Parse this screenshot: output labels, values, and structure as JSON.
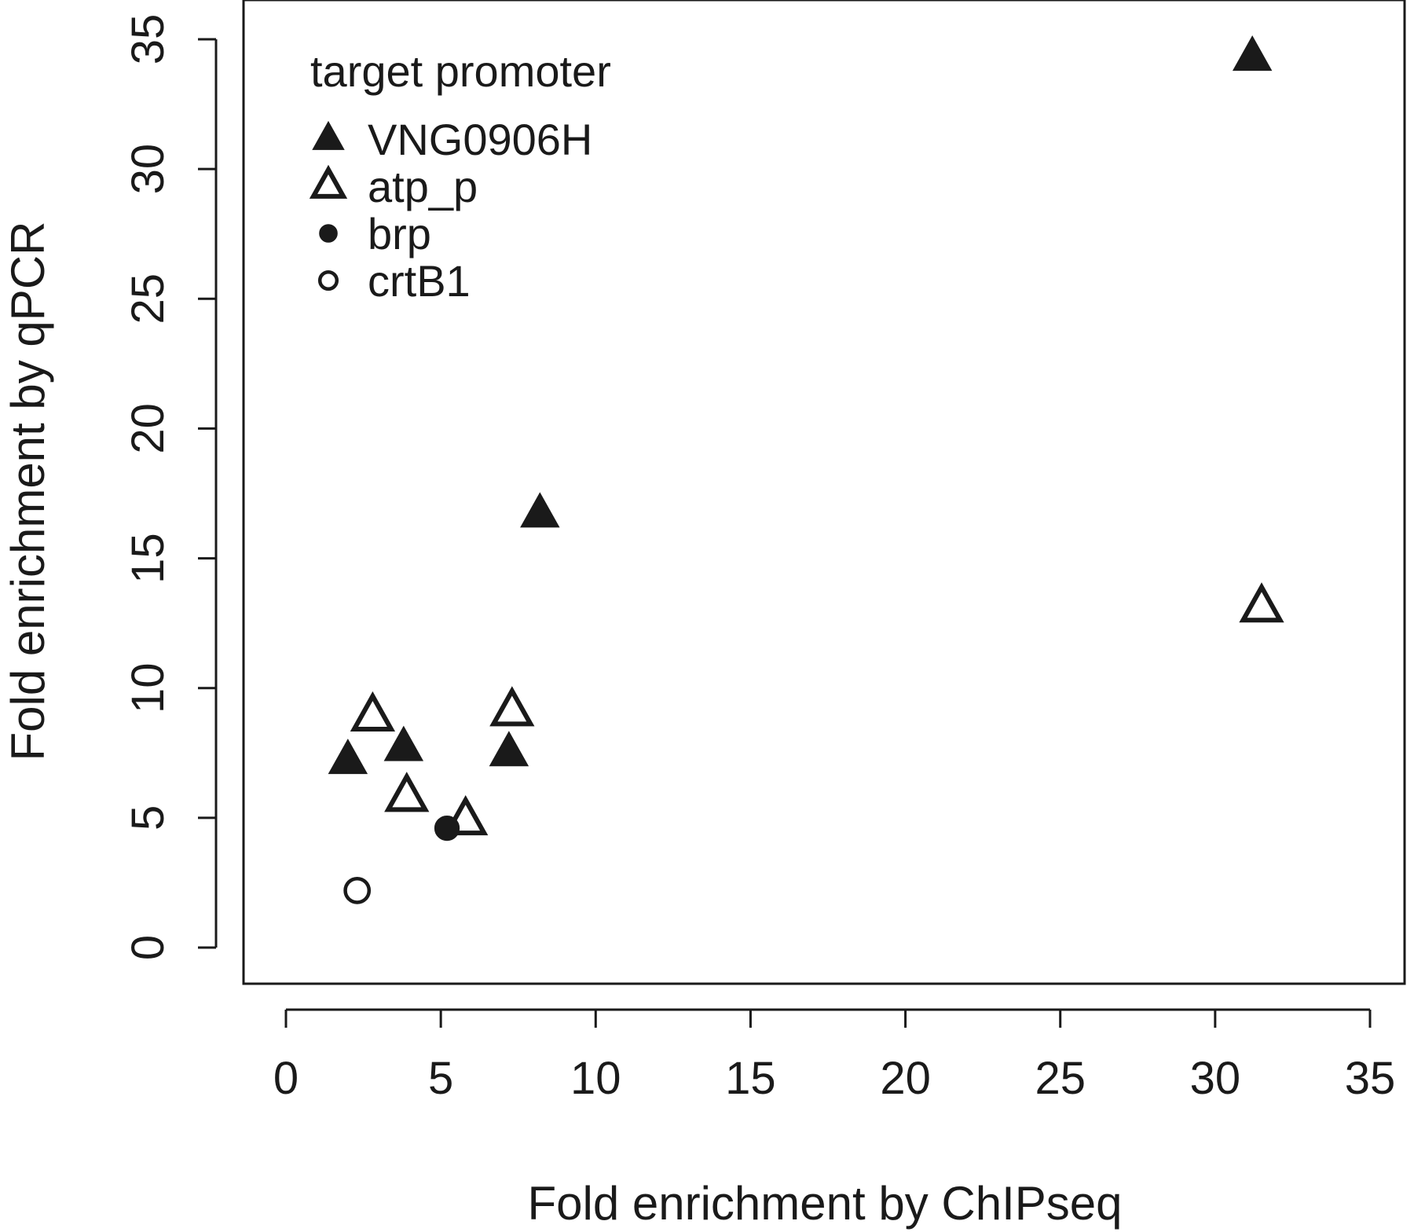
{
  "chart_data": {
    "type": "scatter",
    "xlabel": "Fold enrichment by ChIPseq",
    "ylabel": "Fold enrichment by qPCR",
    "xlim": [
      -0.5,
      35
    ],
    "ylim": [
      -1.4,
      36
    ],
    "xticks": [
      0,
      5,
      10,
      15,
      20,
      25,
      30,
      35
    ],
    "yticks": [
      0,
      5,
      10,
      15,
      20,
      25,
      30,
      35
    ],
    "grid": false,
    "legend": {
      "title": "target promoter",
      "placement": "top-left"
    },
    "series": [
      {
        "name": "VNG0906H",
        "marker": "filled-triangle",
        "points": [
          [
            2.0,
            7.2
          ],
          [
            3.8,
            7.7
          ],
          [
            7.2,
            7.5
          ],
          [
            8.2,
            16.7
          ],
          [
            31.2,
            34.3
          ]
        ]
      },
      {
        "name": "atp_p",
        "marker": "open-triangle",
        "points": [
          [
            2.8,
            8.9
          ],
          [
            3.9,
            5.8
          ],
          [
            5.8,
            4.9
          ],
          [
            7.3,
            9.1
          ],
          [
            31.5,
            13.1
          ]
        ]
      },
      {
        "name": "brp",
        "marker": "filled-circle",
        "points": [
          [
            5.2,
            4.6
          ]
        ]
      },
      {
        "name": "crtB1",
        "marker": "open-circle",
        "points": [
          [
            2.3,
            2.2
          ]
        ]
      }
    ]
  },
  "colors": {
    "ink": "#1a1a1a",
    "background": "#ffffff"
  }
}
